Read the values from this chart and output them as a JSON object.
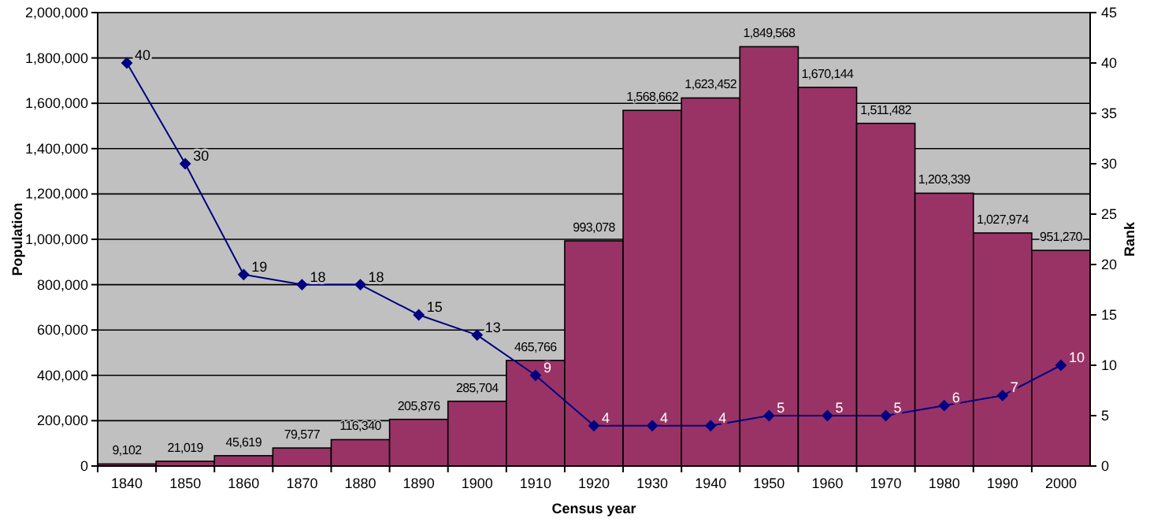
{
  "chart_data": {
    "type": "bar",
    "xlabel": "Census year",
    "ylabel": "Population",
    "y2label": "Rank",
    "categories": [
      "1840",
      "1850",
      "1860",
      "1870",
      "1880",
      "1890",
      "1900",
      "1910",
      "1920",
      "1930",
      "1940",
      "1950",
      "1960",
      "1970",
      "1980",
      "1990",
      "2000"
    ],
    "series": [
      {
        "color": "#993366",
        "values": [
          9102,
          21019,
          45619,
          79577,
          116340,
          205876,
          285704,
          465766,
          993078,
          1568662,
          1623452,
          1849568,
          1670144,
          1511482,
          1203339,
          1027974,
          951270
        ],
        "value_labels": [
          "9,102",
          "21,019",
          "45,619",
          "79,577",
          "116,340",
          "205,876",
          "285,704",
          "465,766",
          "993,078",
          "1,568,662",
          "1,623,452",
          "1,849,568",
          "1,670,144",
          "1,511,482",
          "1,203,339",
          "1,027,974",
          "951,270"
        ]
      },
      {
        "type": "line",
        "axis": "y2",
        "color": "#000080",
        "values": [
          40,
          30,
          19,
          18,
          18,
          15,
          13,
          9,
          4,
          4,
          4,
          5,
          5,
          5,
          6,
          7,
          10
        ],
        "value_labels": [
          "40",
          "30",
          "19",
          "18",
          "18",
          "15",
          "13",
          "9",
          "4",
          "4",
          "4",
          "5",
          "5",
          "5",
          "6",
          "7",
          "10"
        ]
      }
    ],
    "ylim": [
      0,
      2000000
    ],
    "yticks": [
      {
        "value": 0,
        "label": "0"
      },
      {
        "value": 200000,
        "label": "200,000"
      },
      {
        "value": 400000,
        "label": "400,000"
      },
      {
        "value": 600000,
        "label": "600,000"
      },
      {
        "value": 800000,
        "label": "800,000"
      },
      {
        "value": 1000000,
        "label": "1,000,000"
      },
      {
        "value": 1200000,
        "label": "1,200,000"
      },
      {
        "value": 1400000,
        "label": "1,400,000"
      },
      {
        "value": 1600000,
        "label": "1,600,000"
      },
      {
        "value": 1800000,
        "label": "1,800,000"
      },
      {
        "value": 2000000,
        "label": "2,000,000"
      }
    ],
    "y2lim": [
      0,
      45
    ],
    "y2ticks": [
      0,
      5,
      10,
      15,
      20,
      25,
      30,
      35,
      40,
      45
    ],
    "grid": "y",
    "marker": "diamond",
    "line_style": "solid"
  }
}
